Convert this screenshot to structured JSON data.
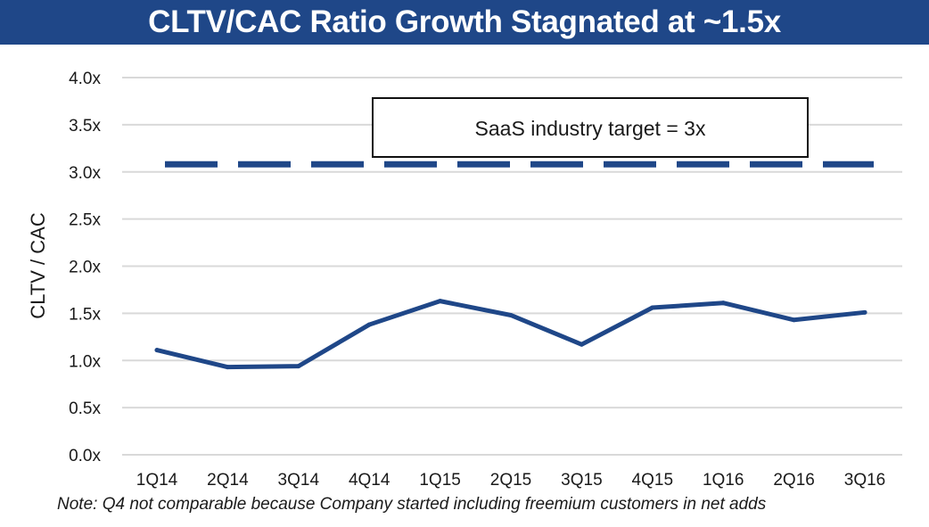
{
  "colors": {
    "title_bg": "#1f4788",
    "title_text": "#ffffff",
    "series": "#1f4788",
    "grid": "#d9d9d9",
    "text": "#1a1a1a"
  },
  "title": "CLTV/CAC Ratio Growth Stagnated at ~1.5x",
  "note": "Note: Q4 not comparable because Company started including freemium customers in net adds",
  "chart_data": {
    "type": "line",
    "title": "CLTV/CAC Ratio Growth Stagnated at ~1.5x",
    "xlabel": "",
    "ylabel": "CLTV / CAC",
    "ylim": [
      0,
      4
    ],
    "grid": true,
    "categories": [
      "1Q14",
      "2Q14",
      "3Q14",
      "4Q14",
      "1Q15",
      "2Q15",
      "3Q15",
      "4Q15",
      "1Q16",
      "2Q16",
      "3Q16"
    ],
    "y_ticks": [
      {
        "value": 0,
        "label": "0.0x"
      },
      {
        "value": 0.5,
        "label": "0.5x"
      },
      {
        "value": 1.0,
        "label": "1.0x"
      },
      {
        "value": 1.5,
        "label": "1.5x"
      },
      {
        "value": 2.0,
        "label": "2.0x"
      },
      {
        "value": 2.5,
        "label": "2.5x"
      },
      {
        "value": 3.0,
        "label": "3.0x"
      },
      {
        "value": 3.5,
        "label": "3.5x"
      },
      {
        "value": 4.0,
        "label": "4.0x"
      }
    ],
    "series": [
      {
        "name": "CLTV/CAC",
        "values": [
          1.11,
          0.93,
          0.94,
          1.38,
          1.63,
          1.48,
          1.17,
          1.56,
          1.61,
          1.43,
          1.51
        ]
      }
    ],
    "reference_line": {
      "label": "SaaS industry target = 3x",
      "value": 3.08,
      "style": "dashed"
    }
  }
}
